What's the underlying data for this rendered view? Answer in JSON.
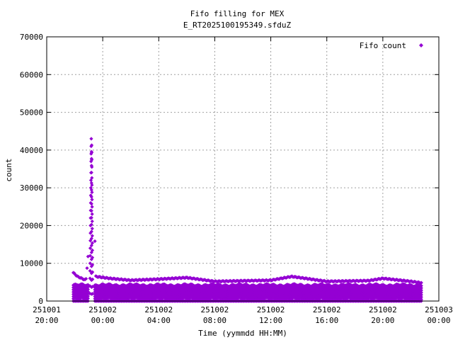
{
  "chart_data": {
    "type": "scatter",
    "title": "Fifo filling for MEX",
    "subtitle": "E_RT2025100195349.sfduZ",
    "xlabel": "Time (yymmdd HH:MM)",
    "ylabel": "count",
    "ylim": [
      0,
      70000
    ],
    "yticks": [
      0,
      10000,
      20000,
      30000,
      40000,
      50000,
      60000,
      70000
    ],
    "xlim_hours": [
      -4,
      24
    ],
    "xticks": [
      {
        "hours": -4,
        "date": "251001",
        "time": "20:00"
      },
      {
        "hours": 0,
        "date": "251002",
        "time": "00:00"
      },
      {
        "hours": 4,
        "date": "251002",
        "time": "04:00"
      },
      {
        "hours": 8,
        "date": "251002",
        "time": "08:00"
      },
      {
        "hours": 12,
        "date": "251002",
        "time": "12:00"
      },
      {
        "hours": 16,
        "date": "251002",
        "time": "16:00"
      },
      {
        "hours": 20,
        "date": "251002",
        "time": "20:00"
      },
      {
        "hours": 24,
        "date": "251003",
        "time": "00:00"
      }
    ],
    "grid": true,
    "legend_position": "top-right",
    "series": [
      {
        "name": "Fifo count",
        "color": "#9400d3",
        "marker": "diamond",
        "bands_y": [
          0,
          600,
          1200,
          1800,
          2400,
          3000,
          3600,
          4200
        ],
        "band_x_range": [
          -2.1,
          22.8
        ],
        "envelope": [
          {
            "x": -2.1,
            "y": 7500
          },
          {
            "x": -1.8,
            "y": 6500
          },
          {
            "x": -1.2,
            "y": 5500
          },
          {
            "x": -0.9,
            "y": 18000
          },
          {
            "x": -0.8,
            "y": 33000
          },
          {
            "x": -0.75,
            "y": 43000
          },
          {
            "x": -0.65,
            "y": 30000
          },
          {
            "x": -0.5,
            "y": 6500
          },
          {
            "x": 0.5,
            "y": 6000
          },
          {
            "x": 2,
            "y": 5500
          },
          {
            "x": 4,
            "y": 5800
          },
          {
            "x": 6,
            "y": 6200
          },
          {
            "x": 8,
            "y": 5200
          },
          {
            "x": 12,
            "y": 5500
          },
          {
            "x": 13.5,
            "y": 6500
          },
          {
            "x": 16,
            "y": 5200
          },
          {
            "x": 19,
            "y": 5400
          },
          {
            "x": 20,
            "y": 6000
          },
          {
            "x": 22,
            "y": 5200
          },
          {
            "x": 22.8,
            "y": 4800
          }
        ],
        "spike": {
          "x_range": [
            -1.0,
            -0.6
          ],
          "y_values": [
            2000,
            4000,
            6000,
            8000,
            10000,
            12000,
            14000,
            16000,
            18000,
            20000,
            22000,
            24000,
            26000,
            28000,
            30000,
            32000,
            34000,
            37000,
            39000,
            41000,
            43000
          ]
        }
      }
    ]
  }
}
